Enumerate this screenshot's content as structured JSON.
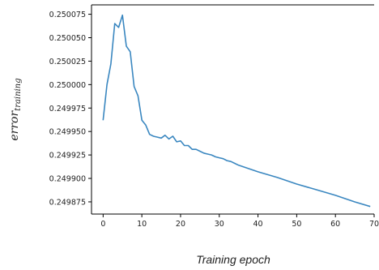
{
  "chart_data": {
    "type": "line",
    "xlabel": "Training epoch",
    "ylabel": {
      "main": "error",
      "sub": "training"
    },
    "xlim": [
      -3,
      70
    ],
    "ylim": [
      0.249862,
      0.250085
    ],
    "xticks": [
      0,
      10,
      20,
      30,
      40,
      50,
      60,
      70
    ],
    "xtick_labels": [
      "0",
      "10",
      "20",
      "30",
      "40",
      "50",
      "60",
      "70"
    ],
    "yticks": [
      0.249875,
      0.2499,
      0.249925,
      0.24995,
      0.249975,
      0.25,
      0.250025,
      0.25005,
      0.250075
    ],
    "ytick_labels": [
      "0.249875",
      "0.249900",
      "0.249925",
      "0.249950",
      "0.249975",
      "0.250000",
      "0.250025",
      "0.250050",
      "0.250075"
    ],
    "grid": false,
    "line_color": "#3a87c0",
    "series": [
      {
        "x": [
          0,
          1,
          2,
          3,
          4,
          5,
          6,
          7,
          8,
          9,
          10,
          11,
          12,
          13,
          14,
          15,
          16,
          17,
          18,
          19,
          20,
          21,
          22,
          23,
          24,
          25,
          26,
          27,
          28,
          29,
          30,
          31,
          32,
          33,
          34,
          35,
          40,
          45,
          50,
          55,
          60,
          65,
          69
        ],
        "values": [
          0.249962,
          0.25,
          0.250022,
          0.250065,
          0.250061,
          0.250074,
          0.250041,
          0.250035,
          0.249998,
          0.249988,
          0.249962,
          0.249957,
          0.249947,
          0.249945,
          0.249944,
          0.249943,
          0.249946,
          0.249942,
          0.249945,
          0.249939,
          0.24994,
          0.249935,
          0.249935,
          0.249931,
          0.249931,
          0.249929,
          0.249927,
          0.249926,
          0.249925,
          0.249923,
          0.249922,
          0.249921,
          0.249919,
          0.249918,
          0.249916,
          0.249914,
          0.249907,
          0.249901,
          0.249894,
          0.249888,
          0.249882,
          0.249875,
          0.24987
        ]
      }
    ]
  }
}
